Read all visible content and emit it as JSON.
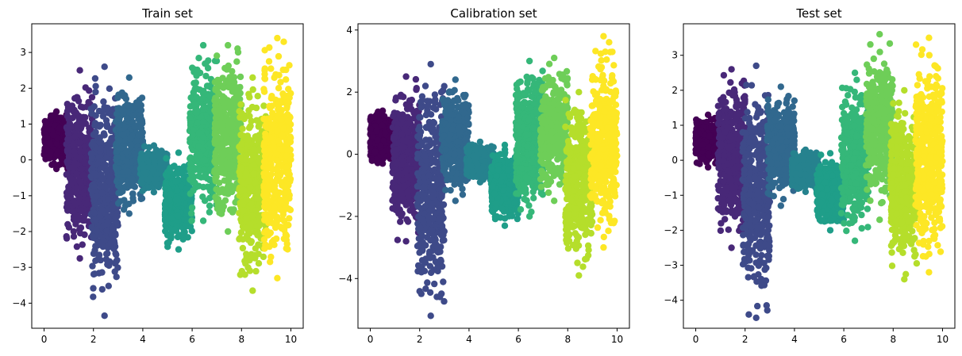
{
  "colors": {
    "palette": [
      "#440154",
      "#482878",
      "#3e4a89",
      "#31688e",
      "#26828e",
      "#1f9e89",
      "#35b779",
      "#6ece58",
      "#b5de2b",
      "#fde725"
    ],
    "axes": "#000000",
    "background": "#ffffff"
  },
  "chart_data": [
    {
      "type": "scatter",
      "title": "Train set",
      "xlabel": "",
      "ylabel": "",
      "xlim": [
        -0.5,
        10.5
      ],
      "ylim": [
        -4.7,
        3.8
      ],
      "xticks": [
        0,
        2,
        4,
        6,
        8,
        10
      ],
      "yticks": [
        -4,
        -3,
        -2,
        -1,
        0,
        1,
        2,
        3
      ],
      "grid": false,
      "legend": "none",
      "colormap": "viridis",
      "clusters": [
        {
          "x": [
            0.0,
            1.0
          ],
          "y": [
            -0.25,
            1.35
          ],
          "color": "#440154"
        },
        {
          "x": [
            0.9,
            2.0
          ],
          "y": [
            -2.75,
            2.5
          ],
          "color": "#482878"
        },
        {
          "x": [
            1.9,
            3.0
          ],
          "y": [
            -4.35,
            2.6
          ],
          "color": "#3e4a89"
        },
        {
          "x": [
            2.9,
            4.0
          ],
          "y": [
            -1.5,
            2.3
          ],
          "color": "#31688e"
        },
        {
          "x": [
            3.9,
            5.0
          ],
          "y": [
            -0.9,
            0.4
          ],
          "color": "#26828e"
        },
        {
          "x": [
            4.9,
            6.0
          ],
          "y": [
            -2.5,
            0.2
          ],
          "color": "#1f9e89"
        },
        {
          "x": [
            5.9,
            7.0
          ],
          "y": [
            -1.7,
            3.2
          ],
          "color": "#35b779"
        },
        {
          "x": [
            6.9,
            8.0
          ],
          "y": [
            -2.0,
            3.2
          ],
          "color": "#6ece58"
        },
        {
          "x": [
            7.9,
            9.0
          ],
          "y": [
            -3.65,
            2.3
          ],
          "color": "#b5de2b"
        },
        {
          "x": [
            8.9,
            10.0
          ],
          "y": [
            -3.3,
            3.4
          ],
          "color": "#fde725"
        }
      ]
    },
    {
      "type": "scatter",
      "title": "Calibration set",
      "xlabel": "",
      "ylabel": "",
      "xlim": [
        -0.5,
        10.5
      ],
      "ylim": [
        -5.6,
        4.2
      ],
      "xticks": [
        0,
        2,
        4,
        6,
        8,
        10
      ],
      "yticks": [
        -4,
        -2,
        0,
        2,
        4
      ],
      "grid": false,
      "legend": "none",
      "colormap": "viridis",
      "clusters": [
        {
          "x": [
            0.0,
            1.0
          ],
          "y": [
            -0.3,
            1.4
          ],
          "color": "#440154"
        },
        {
          "x": [
            0.9,
            2.0
          ],
          "y": [
            -2.8,
            2.5
          ],
          "color": "#482878"
        },
        {
          "x": [
            1.9,
            3.0
          ],
          "y": [
            -5.2,
            2.9
          ],
          "color": "#3e4a89"
        },
        {
          "x": [
            2.9,
            4.0
          ],
          "y": [
            -1.5,
            2.4
          ],
          "color": "#31688e"
        },
        {
          "x": [
            3.9,
            5.0
          ],
          "y": [
            -0.9,
            0.4
          ],
          "color": "#26828e"
        },
        {
          "x": [
            4.9,
            6.0
          ],
          "y": [
            -2.3,
            0.3
          ],
          "color": "#1f9e89"
        },
        {
          "x": [
            5.9,
            7.0
          ],
          "y": [
            -2.0,
            3.0
          ],
          "color": "#35b779"
        },
        {
          "x": [
            6.9,
            8.0
          ],
          "y": [
            -1.5,
            3.1
          ],
          "color": "#6ece58"
        },
        {
          "x": [
            7.9,
            9.0
          ],
          "y": [
            -3.9,
            2.0
          ],
          "color": "#b5de2b"
        },
        {
          "x": [
            8.9,
            10.0
          ],
          "y": [
            -3.0,
            3.8
          ],
          "color": "#fde725"
        }
      ]
    },
    {
      "type": "scatter",
      "title": "Test set",
      "xlabel": "",
      "ylabel": "",
      "xlim": [
        -0.5,
        10.5
      ],
      "ylim": [
        -4.8,
        3.9
      ],
      "xticks": [
        0,
        2,
        4,
        6,
        8,
        10
      ],
      "yticks": [
        -4,
        -3,
        -2,
        -1,
        0,
        1,
        2,
        3
      ],
      "grid": false,
      "legend": "none",
      "colormap": "viridis",
      "clusters": [
        {
          "x": [
            0.0,
            1.0
          ],
          "y": [
            -0.2,
            1.3
          ],
          "color": "#440154"
        },
        {
          "x": [
            0.9,
            2.0
          ],
          "y": [
            -2.5,
            2.6
          ],
          "color": "#482878"
        },
        {
          "x": [
            1.9,
            3.0
          ],
          "y": [
            -4.5,
            2.7
          ],
          "color": "#3e4a89"
        },
        {
          "x": [
            2.9,
            4.0
          ],
          "y": [
            -1.3,
            2.1
          ],
          "color": "#31688e"
        },
        {
          "x": [
            3.9,
            5.0
          ],
          "y": [
            -0.9,
            0.3
          ],
          "color": "#26828e"
        },
        {
          "x": [
            4.9,
            6.0
          ],
          "y": [
            -2.0,
            0.2
          ],
          "color": "#1f9e89"
        },
        {
          "x": [
            5.9,
            7.0
          ],
          "y": [
            -2.3,
            2.5
          ],
          "color": "#35b779"
        },
        {
          "x": [
            6.9,
            8.0
          ],
          "y": [
            -1.7,
            3.6
          ],
          "color": "#6ece58"
        },
        {
          "x": [
            7.9,
            9.0
          ],
          "y": [
            -3.4,
            2.0
          ],
          "color": "#b5de2b"
        },
        {
          "x": [
            8.9,
            10.0
          ],
          "y": [
            -3.2,
            3.5
          ],
          "color": "#fde725"
        }
      ]
    }
  ]
}
